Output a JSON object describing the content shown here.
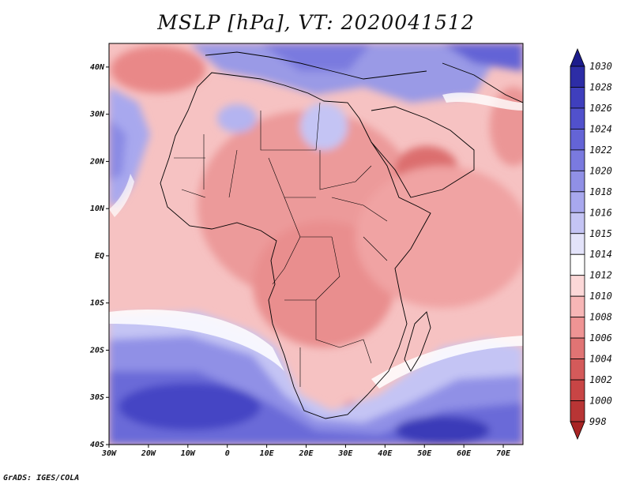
{
  "title": "MSLP [hPa], VT: 2020041512",
  "footer": "GrADS: IGES/COLA",
  "map": {
    "lon_range": [
      -30,
      75
    ],
    "lat_range": [
      -40,
      45
    ],
    "lon_ticks": [
      {
        "v": -30,
        "label": "30W"
      },
      {
        "v": -20,
        "label": "20W"
      },
      {
        "v": -10,
        "label": "10W"
      },
      {
        "v": 0,
        "label": "0"
      },
      {
        "v": 10,
        "label": "10E"
      },
      {
        "v": 20,
        "label": "20E"
      },
      {
        "v": 30,
        "label": "30E"
      },
      {
        "v": 40,
        "label": "40E"
      },
      {
        "v": 50,
        "label": "50E"
      },
      {
        "v": 60,
        "label": "60E"
      },
      {
        "v": 70,
        "label": "70E"
      }
    ],
    "lat_ticks": [
      {
        "v": 40,
        "label": "40N"
      },
      {
        "v": 30,
        "label": "30N"
      },
      {
        "v": 20,
        "label": "20N"
      },
      {
        "v": 10,
        "label": "10N"
      },
      {
        "v": 0,
        "label": "EQ"
      },
      {
        "v": -10,
        "label": "10S"
      },
      {
        "v": -20,
        "label": "20S"
      },
      {
        "v": -30,
        "label": "30S"
      },
      {
        "v": -40,
        "label": "40S"
      }
    ]
  },
  "colorbar": {
    "levels": [
      "1030",
      "1028",
      "1026",
      "1024",
      "1022",
      "1020",
      "1018",
      "1016",
      "1015",
      "1014",
      "1012",
      "1010",
      "1008",
      "1006",
      "1004",
      "1002",
      "1000",
      "998"
    ],
    "colors": [
      "#1c1c8c",
      "#2d2da6",
      "#3f3fbd",
      "#5151cc",
      "#6464d6",
      "#7a7adf",
      "#9090e6",
      "#a8a8ee",
      "#c4c4f4",
      "#e3e3fa",
      "#ffffff",
      "#fcd8d8",
      "#f7b6b6",
      "#ef9494",
      "#e07474",
      "#d45a5a",
      "#c84545",
      "#b83535",
      "#a82424"
    ]
  }
}
